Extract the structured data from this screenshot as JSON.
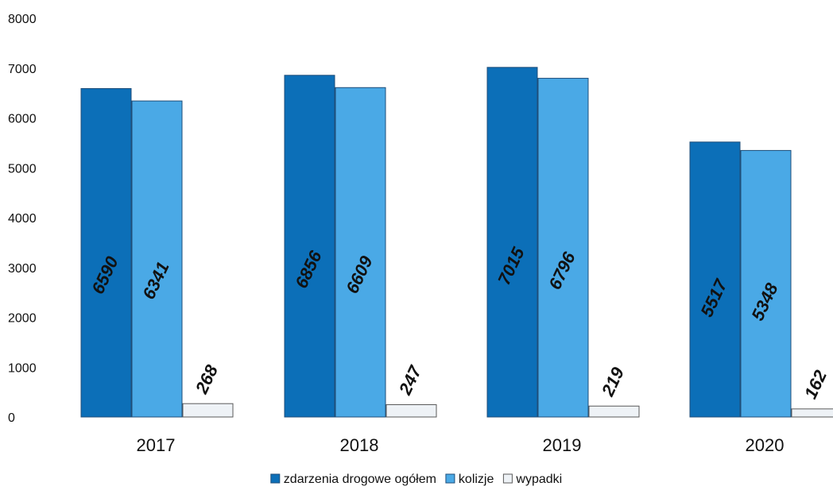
{
  "chart_data": {
    "type": "bar",
    "categories": [
      "2017",
      "2018",
      "2019",
      "2020"
    ],
    "series": [
      {
        "name": "zdarzenia drogowe ogółem",
        "values": [
          6590,
          6856,
          7015,
          5517
        ],
        "color": "#0c6fb8"
      },
      {
        "name": "kolizje",
        "values": [
          6341,
          6609,
          6796,
          5348
        ],
        "color": "#4aa9e6"
      },
      {
        "name": "wypadki",
        "values": [
          268,
          247,
          219,
          162
        ],
        "color": "#eef2f6"
      }
    ],
    "ylim": [
      0,
      8000
    ],
    "yticks": [
      0,
      1000,
      2000,
      3000,
      4000,
      5000,
      6000,
      7000,
      8000
    ],
    "title": "",
    "xlabel": "",
    "ylabel": "",
    "grid": false,
    "legend_position": "bottom-center",
    "data_labels": true
  }
}
